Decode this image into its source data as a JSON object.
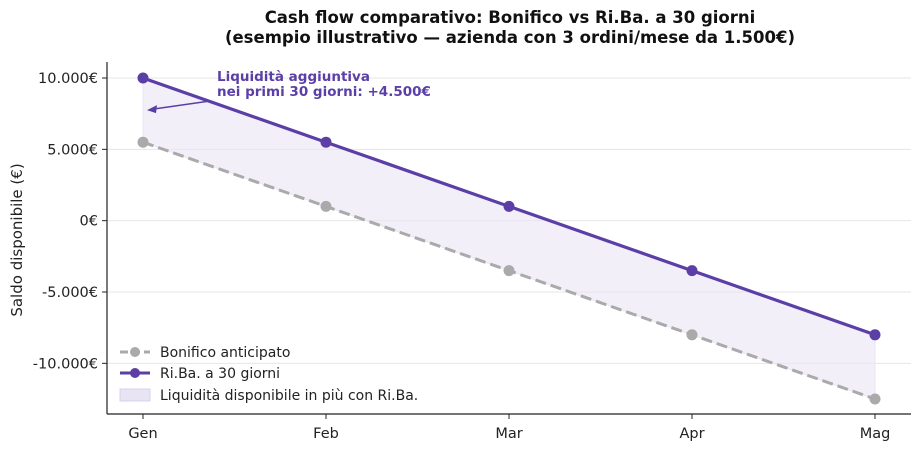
{
  "chart_data": {
    "type": "line",
    "title_line1": "Cash flow comparativo: Bonifico vs Ri.Ba. a 30 giorni",
    "title_line2": "(esempio illustrativo — azienda con 3 ordini/mese da 1.500€)",
    "xlabel": "",
    "ylabel": "Saldo disponibile (€)",
    "categories": [
      "Gen",
      "Feb",
      "Mar",
      "Apr",
      "Mag"
    ],
    "ylim": [
      -13500,
      11000
    ],
    "yticks": [
      10000,
      5000,
      0,
      -5000,
      -10000
    ],
    "ytick_labels": [
      "10.000€",
      "5.000€",
      "0€",
      "-5.000€",
      "-10.000€"
    ],
    "grid": "horizontal",
    "legend_position": "lower-left",
    "series": [
      {
        "name": "Bonifico anticipato",
        "values": [
          5500,
          1000,
          -3500,
          -8000,
          -12500
        ],
        "color": "#aaaaaa",
        "style": "dashed"
      },
      {
        "name": "Ri.Ba. a 30 giorni",
        "values": [
          10000,
          5500,
          1000,
          -3500,
          -8000
        ],
        "color": "#5b3fa6",
        "style": "solid"
      }
    ],
    "fill_between": {
      "name": "Liquidità disponibile in più con Ri.Ba.",
      "color": "#e9e4f4"
    },
    "annotation": {
      "line1": "Liquidità aggiuntiva",
      "line2": "nei primi 30 giorni: +4.500€",
      "color": "#5b3fa6",
      "arrow_target": {
        "category": "Gen",
        "value": 7750
      }
    }
  }
}
